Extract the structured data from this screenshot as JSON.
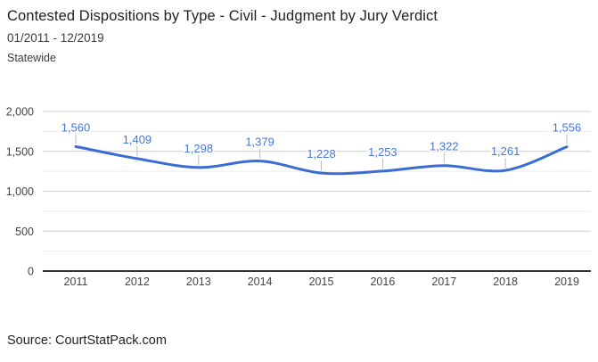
{
  "header": {
    "title": "Contested Dispositions by Type - Civil - Judgment by Jury Verdict",
    "date_range": "01/2011 - 12/2019",
    "region": "Statewide"
  },
  "footer": {
    "source": "Source: CourtStatPack.com"
  },
  "chart_data": {
    "type": "line",
    "title": "Contested Dispositions by Type - Civil - Judgment by Jury Verdict",
    "subtitle": "01/2011 - 12/2019",
    "region": "Statewide",
    "categories": [
      "2011",
      "2012",
      "2013",
      "2014",
      "2015",
      "2016",
      "2017",
      "2018",
      "2019"
    ],
    "series": [
      {
        "name": "Judgment by Jury Verdict",
        "values": [
          1560,
          1409,
          1298,
          1379,
          1228,
          1253,
          1322,
          1261,
          1556
        ],
        "labels": [
          "1,560",
          "1,409",
          "1,298",
          "1,379",
          "1,228",
          "1,253",
          "1,322",
          "1,261",
          "1,556"
        ]
      }
    ],
    "xlabel": "",
    "ylabel": "",
    "ylim": [
      0,
      2000
    ],
    "y_ticks": [
      0,
      500,
      1000,
      1500,
      2000
    ],
    "y_tick_labels": [
      "0",
      "500",
      "1,000",
      "1,500",
      "2,000"
    ],
    "minor_grid_step": 250,
    "grid": true,
    "legend": "none",
    "smooth": true,
    "colors": {
      "line": "#3b6cd3",
      "annotation": "#4676dc",
      "stem": "#bdbdbd",
      "grid_major": "#cccccc",
      "grid_minor": "#ececec",
      "axis_line": "#333333",
      "tick_text": "#444444"
    }
  }
}
